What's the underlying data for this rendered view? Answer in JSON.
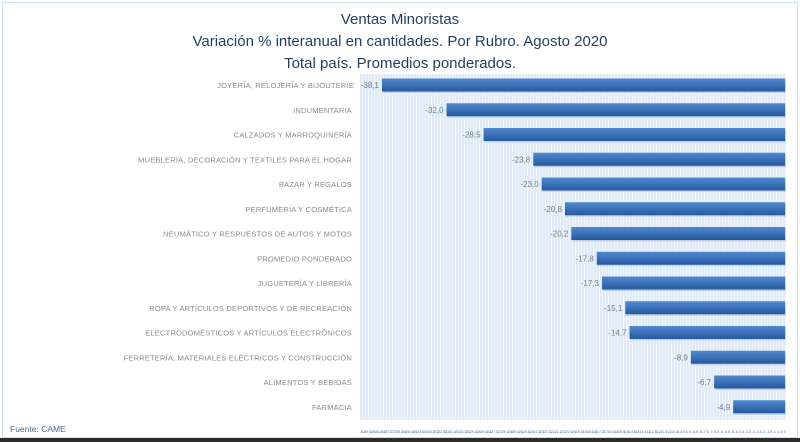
{
  "title": {
    "line1": "Ventas Minoristas",
    "line2": "Variación % interanual en cantidades. Por Rubro. Agosto 2020",
    "line3": "Total país. Promedios ponderados."
  },
  "source": "Fuente: CAME",
  "colors": {
    "bar_top": "#5089d0",
    "bar_bottom": "#25599f",
    "plot_bg": "#eef4fb",
    "gridline": "#d3e2f2",
    "title": "#1f3f5f"
  },
  "chart_data": {
    "type": "bar",
    "orientation": "horizontal",
    "title": "Ventas Minoristas — Variación % interanual en cantidades. Por Rubro. Agosto 2020 — Total país. Promedios ponderados.",
    "xlabel": "",
    "ylabel": "",
    "xlim": [
      -40,
      0
    ],
    "grid": true,
    "legend": "none",
    "categories": [
      "JOYERÍA, RELOJERÍA Y BIJOUTERIE",
      "INDUMENTARIA",
      "CALZADOS Y MARROQUINERÍA",
      "MUEBLERÍA, DECORACIÓN Y TEXTILES PARA EL HOGAR",
      "BAZAR Y REGALOS",
      "PERFUMERÍA Y COSMÉTICA",
      "NEUMÁTICO Y RESPUESTOS DE AUTOS Y MOTOS",
      "PROMEDIO PONDERADO",
      "JUGUETERÍA Y LIBRERÍA",
      "ROPA Y ARTÍCULOS DEPORTIVOS Y DE RECREACIÓN",
      "ELECTRODOMÉSTICOS Y ARTÍCULOS ELECTRÓNICOS",
      "FERRETERÍA, MATERIALES ELÉCTRICOS Y CONSTRUCCIÓN",
      "ALIMENTOS Y BEBIDAS",
      "FARMACIA"
    ],
    "values": [
      -38.1,
      -32.0,
      -28.5,
      -23.8,
      -23.0,
      -20.8,
      -20.2,
      -17.8,
      -17.3,
      -15.1,
      -14.7,
      -8.9,
      -6.7,
      -4.9
    ],
    "value_labels": [
      "-38,1",
      "-32,0",
      "-28,5",
      "-23,8",
      "-23,0",
      "-20,8",
      "-20,2",
      "-17,8",
      "-17,3",
      "-15,1",
      "-14,7",
      "-8,9",
      "-6,7",
      "-4,9"
    ]
  }
}
